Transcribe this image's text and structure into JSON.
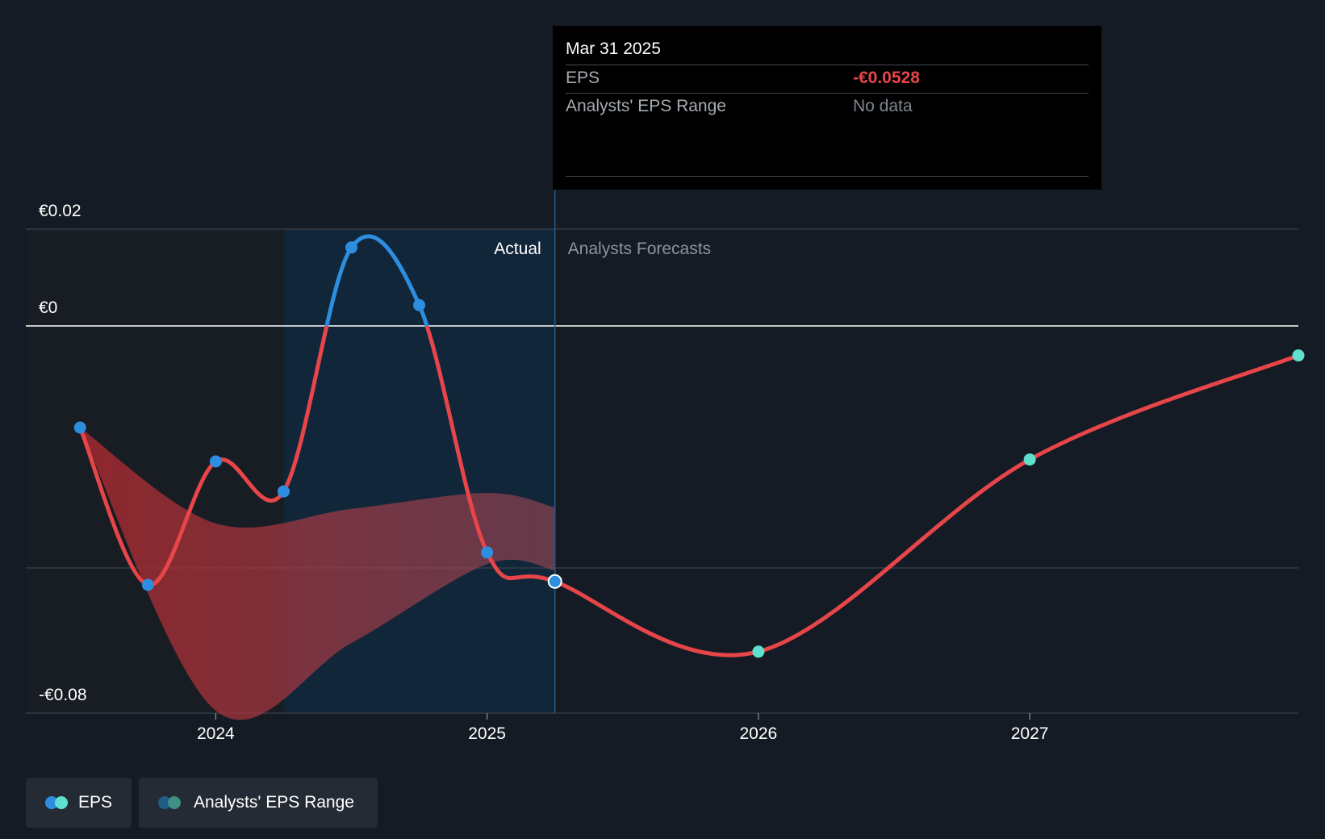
{
  "colors": {
    "background": "#151b24",
    "eps_line": "#e64549",
    "eps_above_zero": "#2d8ee0",
    "actual_point": "#2d8ee0",
    "forecast_point": "#5fe0cf",
    "range_fill": "#8a3038",
    "actual_shade": "#12263a",
    "legend_eps_dots": [
      "#2d8ee0",
      "#5fe0cf"
    ],
    "legend_range_dots": [
      "#1f5e86",
      "#3f8f86"
    ]
  },
  "tooltip": {
    "date": "Mar 31 2025",
    "eps_label": "EPS",
    "eps_value": "-€0.0528",
    "range_label": "Analysts' EPS Range",
    "range_value": "No data"
  },
  "legend": {
    "eps_label": "EPS",
    "range_label": "Analysts' EPS Range"
  },
  "chart_data": {
    "type": "line",
    "y_ticks": [
      {
        "value": 0.02,
        "label": "€0.02"
      },
      {
        "value": 0,
        "label": "€0"
      },
      {
        "value": -0.08,
        "label": "-€0.08"
      }
    ],
    "ylim": [
      -0.08,
      0.02
    ],
    "x_ticks": [
      {
        "value": 2024.0,
        "label": "2024"
      },
      {
        "value": 2025.0,
        "label": "2025"
      },
      {
        "value": 2026.0,
        "label": "2026"
      },
      {
        "value": 2027.0,
        "label": "2027"
      }
    ],
    "xlim": [
      2023.3,
      2027.99
    ],
    "actual_start": 2024.25,
    "divider_x": 2025.25,
    "section_labels": {
      "actual": "Actual",
      "forecast": "Analysts Forecasts"
    },
    "series": [
      {
        "name": "EPS",
        "points": [
          {
            "x": 2023.5,
            "y": -0.021,
            "kind": "actual"
          },
          {
            "x": 2023.75,
            "y": -0.0535,
            "kind": "actual"
          },
          {
            "x": 2024.0,
            "y": -0.028,
            "kind": "actual"
          },
          {
            "x": 2024.25,
            "y": -0.0342,
            "kind": "actual"
          },
          {
            "x": 2024.5,
            "y": 0.0162,
            "kind": "actual"
          },
          {
            "x": 2024.75,
            "y": 0.0043,
            "kind": "actual"
          },
          {
            "x": 2025.0,
            "y": -0.0468,
            "kind": "actual"
          },
          {
            "x": 2025.25,
            "y": -0.0528,
            "kind": "actual",
            "highlight": true
          },
          {
            "x": 2026.0,
            "y": -0.0673,
            "kind": "forecast"
          },
          {
            "x": 2027.0,
            "y": -0.0276,
            "kind": "forecast"
          },
          {
            "x": 2027.99,
            "y": -0.0061,
            "kind": "forecast"
          }
        ]
      },
      {
        "name": "Analysts' EPS Range",
        "upper": [
          {
            "x": 2023.5,
            "y": -0.021
          },
          {
            "x": 2024.0,
            "y": -0.0408
          },
          {
            "x": 2024.5,
            "y": -0.0378
          },
          {
            "x": 2025.0,
            "y": -0.0345
          },
          {
            "x": 2025.25,
            "y": -0.0375
          }
        ],
        "lower": [
          {
            "x": 2023.5,
            "y": -0.021
          },
          {
            "x": 2024.0,
            "y": -0.0795
          },
          {
            "x": 2024.5,
            "y": -0.0655
          },
          {
            "x": 2025.0,
            "y": -0.0492
          },
          {
            "x": 2025.25,
            "y": -0.0505
          }
        ]
      }
    ]
  }
}
